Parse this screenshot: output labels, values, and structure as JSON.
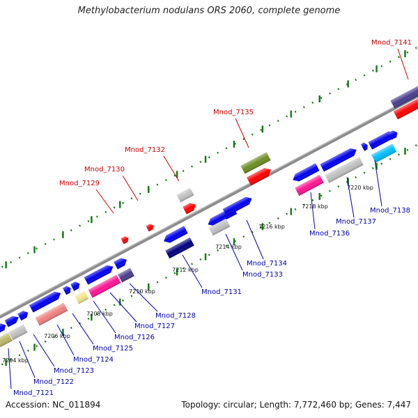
{
  "map": {
    "title": "Methylobacterium nodulans ORS 2060, complete genome",
    "accession": "Accession: NC_011894",
    "summary": "Topology: circular; Length: 7,772,460 bp; Genes: 7,447"
  },
  "ticks": [
    {
      "label": "7204 kbp"
    },
    {
      "label": "7206 kbp"
    },
    {
      "label": "7208 kbp"
    },
    {
      "label": "7210 kbp"
    },
    {
      "label": "7212 kbp"
    },
    {
      "label": "7214 kbp"
    },
    {
      "label": "7216 kbp"
    },
    {
      "label": "7218 kbp"
    },
    {
      "label": "7220 kbp"
    }
  ],
  "genes_upper": [
    {
      "label": "Mnod_7129",
      "color": "#cc0000"
    },
    {
      "label": "Mnod_7130",
      "color": "#cc0000"
    },
    {
      "label": "Mnod_7132",
      "color": "#cc0000"
    },
    {
      "label": "Mnod_7135",
      "color": "#cc0000"
    },
    {
      "label": "Mnod_7141",
      "color": "#cc0000"
    }
  ],
  "genes_lower": [
    {
      "label": "Mnod_7121",
      "color": "#0000aa"
    },
    {
      "label": "Mnod_7122",
      "color": "#0000aa"
    },
    {
      "label": "Mnod_7123",
      "color": "#0000aa"
    },
    {
      "label": "Mnod_7124",
      "color": "#0000aa"
    },
    {
      "label": "Mnod_7125",
      "color": "#0000aa"
    },
    {
      "label": "Mnod_7126",
      "color": "#0000aa"
    },
    {
      "label": "Mnod_7127",
      "color": "#0000aa"
    },
    {
      "label": "Mnod_7128",
      "color": "#0000aa"
    },
    {
      "label": "Mnod_7131",
      "color": "#0000aa"
    },
    {
      "label": "Mnod_7133",
      "color": "#0000aa"
    },
    {
      "label": "Mnod_7134",
      "color": "#0000aa"
    },
    {
      "label": "Mnod_7136",
      "color": "#0000aa"
    },
    {
      "label": "Mnod_7137",
      "color": "#0000aa"
    },
    {
      "label": "Mnod_7138",
      "color": "#0000aa"
    }
  ],
  "colors": {
    "backbone": "#888888",
    "tick_marks": "#1a7a1a",
    "cds_blue": "#0000ee",
    "cds_red": "#ff0000",
    "cds_gray": "#c0c0c0",
    "cds_pink": "#ff1493",
    "cds_navy": "#000080",
    "cds_olive": "#6b8e23",
    "cds_cyan": "#00bfff",
    "cds_yellow": "#f0e68c",
    "cds_salmon": "#f08080",
    "cds_slate": "#483d8b",
    "cds_khaki": "#bdb76b"
  }
}
